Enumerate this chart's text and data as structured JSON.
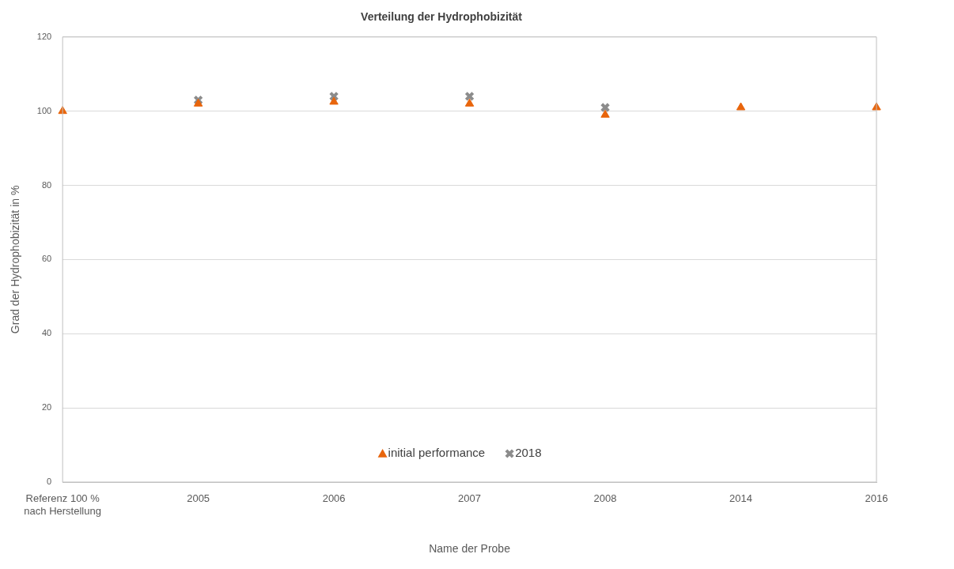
{
  "chart_data": {
    "type": "scatter",
    "title": "Verteilung der Hydrophobizität",
    "xlabel": "Name der Probe",
    "ylabel": "Grad der Hydrophobizität in %",
    "categories": [
      "Referenz 100 % nach Herstellung",
      "2005",
      "2006",
      "2007",
      "2008",
      "2014",
      "2016"
    ],
    "series": [
      {
        "name": "initial performance",
        "color": "#e8650c",
        "marker": "triangle",
        "values": [
          100,
          102,
          102.5,
          102,
          99,
          101,
          101
        ]
      },
      {
        "name": "2018",
        "color": "#8c8c8c",
        "marker": "cross",
        "values": [
          null,
          103,
          104,
          104,
          101,
          null,
          null
        ]
      }
    ],
    "ylim": [
      0,
      120
    ],
    "yticks": [
      0,
      20,
      40,
      60,
      80,
      100,
      120
    ],
    "grid": "y",
    "legend": "bottom"
  }
}
